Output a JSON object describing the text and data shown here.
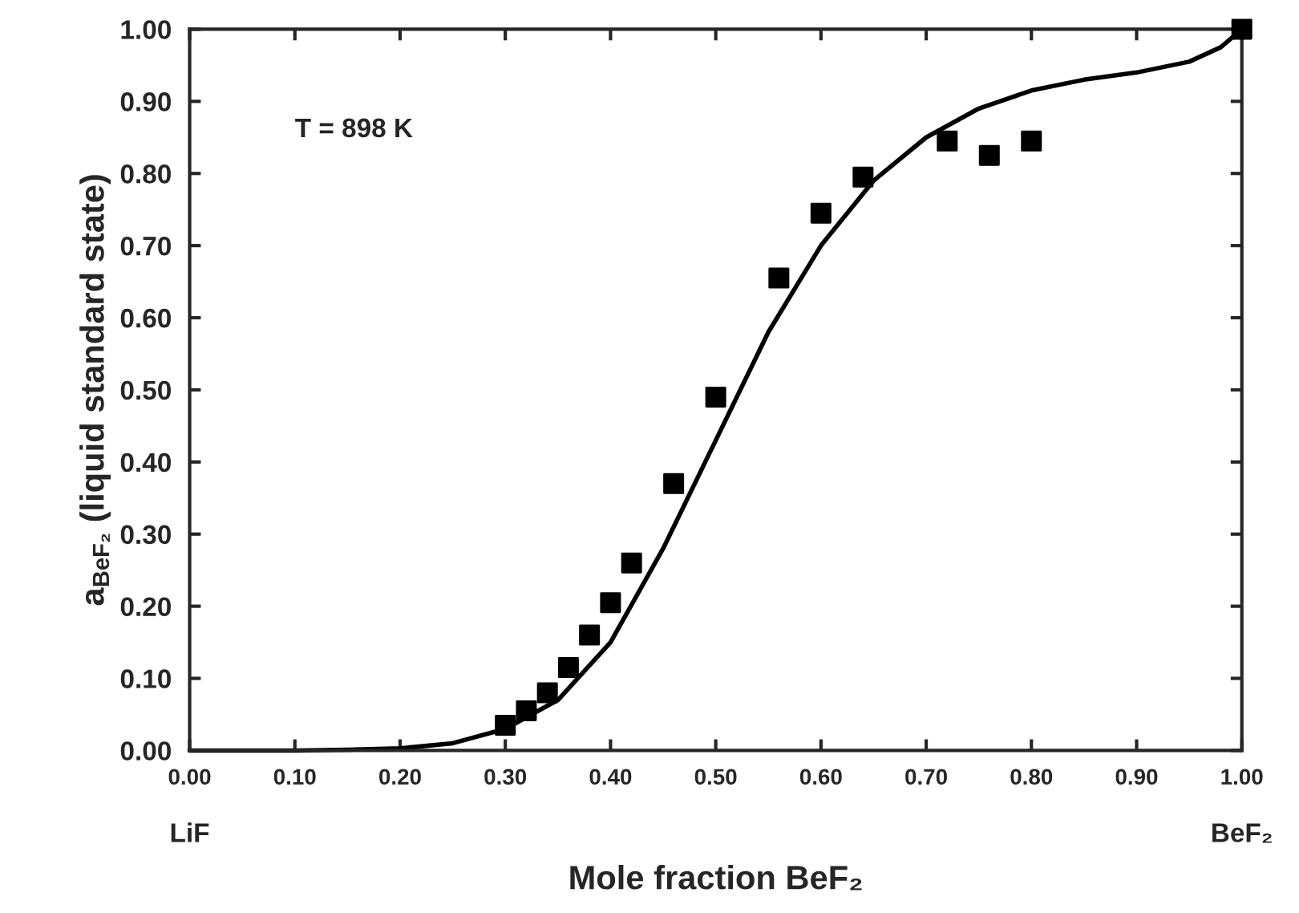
{
  "chart_data": {
    "type": "scatter",
    "xlabel": "Mole fraction BeF₂",
    "ylabel": "a$_{BeF₂}$ (liquid standard state)",
    "annotations": [
      "T = 898 K",
      "LiF",
      "BeF₂"
    ],
    "xlim": [
      0,
      1
    ],
    "ylim": [
      0,
      1
    ],
    "xticks": [
      {
        "value": 0,
        "label": "0.00"
      },
      {
        "value": 0.1,
        "label": "0.10"
      },
      {
        "value": 0.2,
        "label": "0.20"
      },
      {
        "value": 0.3,
        "label": "0.30"
      },
      {
        "value": 0.4,
        "label": "0.40"
      },
      {
        "value": 0.5,
        "label": "0.50"
      },
      {
        "value": 0.6,
        "label": "0.60"
      },
      {
        "value": 0.7,
        "label": "0.70"
      },
      {
        "value": 0.8,
        "label": "0.80"
      },
      {
        "value": 0.9,
        "label": "0.90"
      },
      {
        "value": 1,
        "label": "1.00"
      }
    ],
    "yticks": [
      {
        "value": 0,
        "label": "0.00"
      },
      {
        "value": 0.1,
        "label": "0.10"
      },
      {
        "value": 0.2,
        "label": "0.20"
      },
      {
        "value": 0.3,
        "label": "0.30"
      },
      {
        "value": 0.4,
        "label": "0.40"
      },
      {
        "value": 0.5,
        "label": "0.50"
      },
      {
        "value": 0.6,
        "label": "0.60"
      },
      {
        "value": 0.7,
        "label": "0.70"
      },
      {
        "value": 0.8,
        "label": "0.80"
      },
      {
        "value": 0.9,
        "label": "0.90"
      },
      {
        "value": 1,
        "label": "1.00"
      }
    ],
    "grid": false,
    "legend": false,
    "series": [
      {
        "type": "line",
        "color": "#000000",
        "marker": "none",
        "line_style": "solid",
        "x": [
          0.0,
          0.1,
          0.15,
          0.2,
          0.25,
          0.3,
          0.35,
          0.4,
          0.45,
          0.5,
          0.55,
          0.6,
          0.65,
          0.7,
          0.75,
          0.8,
          0.85,
          0.9,
          0.95,
          0.98,
          1.0
        ],
        "values": [
          0.0,
          0.0,
          0.001,
          0.003,
          0.01,
          0.03,
          0.07,
          0.15,
          0.28,
          0.43,
          0.58,
          0.7,
          0.79,
          0.85,
          0.89,
          0.915,
          0.93,
          0.94,
          0.955,
          0.975,
          1.0
        ]
      },
      {
        "color": "#000000",
        "marker": "square",
        "x": [
          0.3,
          0.32,
          0.34,
          0.36,
          0.38,
          0.4,
          0.42,
          0.46,
          0.5,
          0.56,
          0.6,
          0.64,
          0.72,
          0.76,
          0.8,
          1.0
        ],
        "values": [
          0.035,
          0.055,
          0.08,
          0.115,
          0.16,
          0.205,
          0.26,
          0.37,
          0.49,
          0.655,
          0.745,
          0.795,
          0.845,
          0.825,
          0.845,
          1.0
        ]
      }
    ]
  }
}
